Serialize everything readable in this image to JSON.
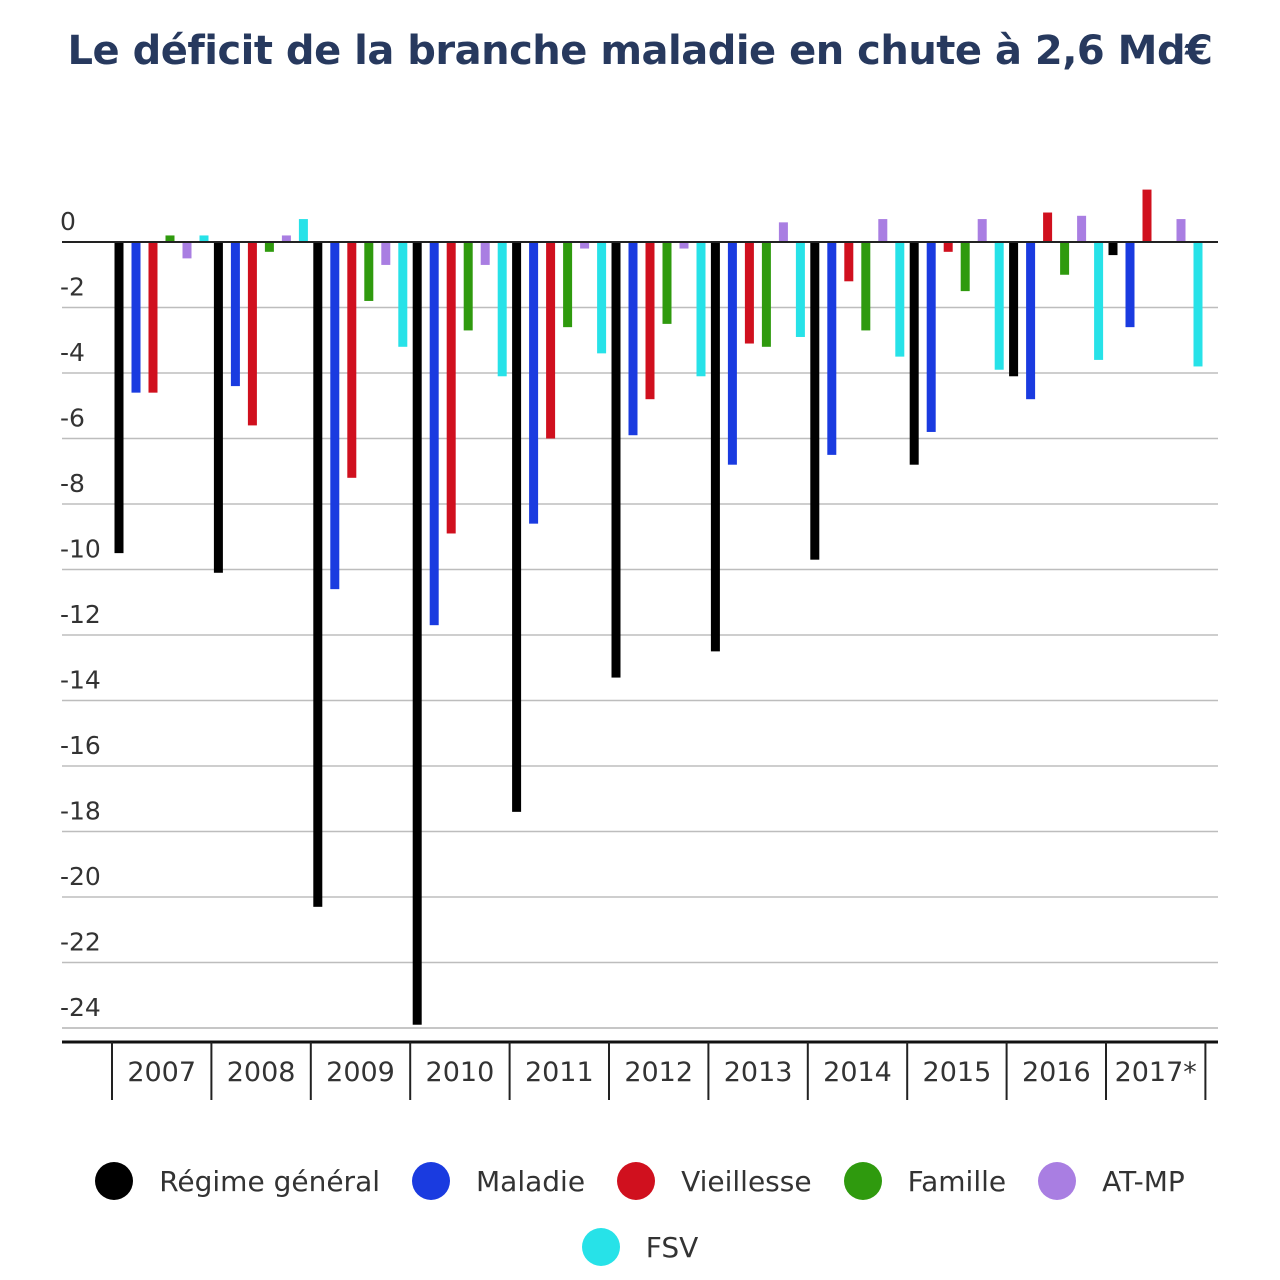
{
  "chart_data": {
    "type": "bar",
    "title": "Le déficit de la branche maladie en chute à 2,6 Md€",
    "xlabel": "",
    "ylabel": "",
    "categories": [
      "2007",
      "2008",
      "2009",
      "2010",
      "2011",
      "2012",
      "2013",
      "2014",
      "2015",
      "2016",
      "2017*"
    ],
    "yticks": [
      "0",
      "-2",
      "-4",
      "-6",
      "-8",
      "-10",
      "-12",
      "-14",
      "-16",
      "-18",
      "-20",
      "-22",
      "-24"
    ],
    "ylim": [
      -24,
      1.6
    ],
    "grid": true,
    "legend_position": "bottom",
    "series": [
      {
        "name": "Régime général",
        "color": "#000000",
        "values": [
          -9.5,
          -10.1,
          -20.3,
          -23.9,
          -17.4,
          -13.3,
          -12.5,
          -9.7,
          -6.8,
          -4.1,
          -0.4
        ]
      },
      {
        "name": "Maladie",
        "color": "#1a3be0",
        "values": [
          -4.6,
          -4.4,
          -10.6,
          -11.7,
          -8.6,
          -5.9,
          -6.8,
          -6.5,
          -5.8,
          -4.8,
          -2.6
        ]
      },
      {
        "name": "Vieillesse",
        "color": "#d0101e",
        "values": [
          -4.6,
          -5.6,
          -7.2,
          -8.9,
          -6.0,
          -4.8,
          -3.1,
          -1.2,
          -0.3,
          0.9,
          1.6
        ]
      },
      {
        "name": "Famille",
        "color": "#2f9a0e",
        "values": [
          0.2,
          -0.3,
          -1.8,
          -2.7,
          -2.6,
          -2.5,
          -3.2,
          -2.7,
          -1.5,
          -1.0,
          0.0
        ]
      },
      {
        "name": "AT-MP",
        "color": "#a97ee2",
        "values": [
          -0.5,
          0.2,
          -0.7,
          -0.7,
          -0.2,
          -0.2,
          0.6,
          0.7,
          0.7,
          0.8,
          0.7
        ]
      },
      {
        "name": "FSV",
        "color": "#27e2e8",
        "values": [
          0.2,
          0.7,
          -3.2,
          -4.1,
          -3.4,
          -4.1,
          -2.9,
          -3.5,
          -3.9,
          -3.6,
          -3.8
        ]
      }
    ]
  }
}
